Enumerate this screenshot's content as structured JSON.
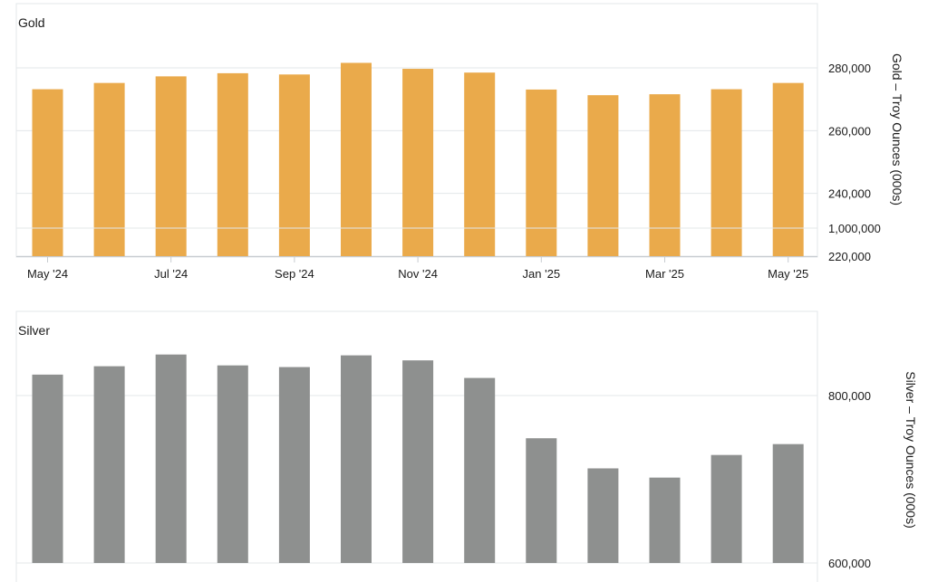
{
  "colors": {
    "gold_bar": "#EAAA4B",
    "silver_bar": "#8E908F",
    "grid": "#E3E7EA"
  },
  "chart_data": [
    {
      "type": "bar",
      "title": "Gold",
      "ylabel": "Gold – Troy Ounces (000s)",
      "categories": [
        "May '24",
        "Jun '24",
        "Jul '24",
        "Aug '24",
        "Sep '24",
        "Oct '24",
        "Nov '24",
        "Dec '24",
        "Jan '25",
        "Feb '25",
        "Mar '25",
        "Apr '25",
        "May '25"
      ],
      "x_tick_labels": [
        "May '24",
        "Jul '24",
        "Sep '24",
        "Nov '24",
        "Jan '25",
        "Mar '25",
        "May '25"
      ],
      "values": [
        273200,
        275200,
        277300,
        278300,
        277900,
        281600,
        279700,
        278500,
        273100,
        271300,
        271600,
        273200,
        275200
      ],
      "ylim": [
        220000,
        290000
      ],
      "y_ticks": [
        "220,000",
        "240,000",
        "260,000",
        "280,000"
      ],
      "y_tick_values": [
        220000,
        240000,
        260000,
        280000
      ],
      "grid": true
    },
    {
      "type": "bar",
      "title": "Silver",
      "ylabel": "Silver – Troy Ounces (000s)",
      "categories": [
        "May '24",
        "Jun '24",
        "Jul '24",
        "Aug '24",
        "Sep '24",
        "Oct '24",
        "Nov '24",
        "Dec '24",
        "Jan '25",
        "Feb '25",
        "Mar '25",
        "Apr '25",
        "May '25"
      ],
      "values": [
        825000,
        835000,
        849000,
        836000,
        834000,
        848000,
        842000,
        821000,
        749000,
        713000,
        702000,
        729000,
        742000
      ],
      "ylim": [
        600000,
        1200000
      ],
      "y_ticks": [
        "600,000",
        "800,000",
        "1,000,000"
      ],
      "y_tick_values": [
        600000,
        800000,
        1000000
      ],
      "grid": true
    }
  ]
}
